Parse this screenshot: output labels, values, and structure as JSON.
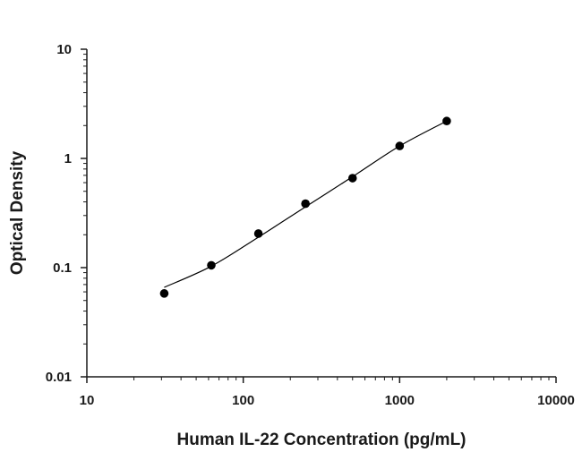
{
  "chart_data": {
    "type": "scatter",
    "xlabel": "Human IL-22 Concentration (pg/mL)",
    "ylabel": "Optical Density",
    "xscale": "log",
    "yscale": "log",
    "xlim": [
      10,
      10000
    ],
    "ylim": [
      0.01,
      10
    ],
    "xticks": [
      "10",
      "100",
      "1000",
      "10000"
    ],
    "yticks": [
      "0.01",
      "0.1",
      "1",
      "10"
    ],
    "grid": false,
    "series": [
      {
        "x": [
          31.25,
          62.5,
          125,
          250,
          500,
          1000,
          2000
        ],
        "y": [
          0.058,
          0.105,
          0.205,
          0.385,
          0.66,
          1.3,
          2.2
        ]
      }
    ],
    "fit_curve": {
      "x": [
        31.25,
        62.5,
        125,
        250,
        500,
        1000,
        2000
      ],
      "y": [
        0.066,
        0.103,
        0.19,
        0.36,
        0.68,
        1.3,
        2.2
      ]
    }
  }
}
